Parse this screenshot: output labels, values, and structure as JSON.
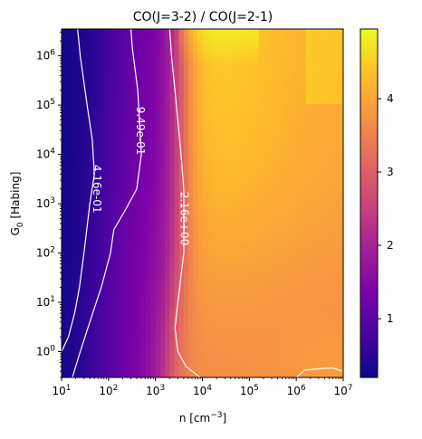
{
  "chart_data": {
    "type": "heatmap",
    "title": "CO(J=3-2) / CO(J=2-1)",
    "xlabel": "n [cm^-3]",
    "xlabel_parts": {
      "base": "n [cm",
      "sup": "−3",
      "end": "]"
    },
    "ylabel": "G_0 [Habing]",
    "ylabel_parts": {
      "base": "G",
      "sub": "0",
      "end": " [Habing]"
    },
    "x_scale": "log",
    "y_scale": "log",
    "xlim": [
      10,
      10000000
    ],
    "ylim": [
      0.3,
      3500000
    ],
    "x_ticks": [
      {
        "exp": 1,
        "base": "10",
        "sup": "1"
      },
      {
        "exp": 2,
        "base": "10",
        "sup": "2"
      },
      {
        "exp": 3,
        "base": "10",
        "sup": "3"
      },
      {
        "exp": 4,
        "base": "10",
        "sup": "4"
      },
      {
        "exp": 5,
        "base": "10",
        "sup": "5"
      },
      {
        "exp": 6,
        "base": "10",
        "sup": "6"
      },
      {
        "exp": 7,
        "base": "10",
        "sup": "7"
      }
    ],
    "y_ticks": [
      {
        "exp": 0,
        "base": "10",
        "sup": "0"
      },
      {
        "exp": 1,
        "base": "10",
        "sup": "1"
      },
      {
        "exp": 2,
        "base": "10",
        "sup": "2"
      },
      {
        "exp": 3,
        "base": "10",
        "sup": "3"
      },
      {
        "exp": 4,
        "base": "10",
        "sup": "4"
      },
      {
        "exp": 5,
        "base": "10",
        "sup": "5"
      },
      {
        "exp": 6,
        "base": "10",
        "sup": "6"
      }
    ],
    "colormap": "plasma",
    "colorbar": {
      "range": [
        0.2,
        4.95
      ],
      "ticks": [
        1,
        2,
        3,
        4
      ],
      "tick_labels": [
        "1",
        "2",
        "3",
        "4"
      ]
    },
    "contours": [
      {
        "level_label": "4.16e-01",
        "color": "#ffffff",
        "segments": [
          [
            [
              10.0,
              1.0
            ],
            [
              14.0,
              2.0
            ],
            [
              19.0,
              6.0
            ],
            [
              24.0,
              20.0
            ],
            [
              30.0,
              100.0
            ],
            [
              40.0,
              1000.0
            ],
            [
              50.0,
              4000.0
            ],
            [
              45.0,
              20000.0
            ],
            [
              35.0,
              100000.0
            ],
            [
              25.0,
              1000000.0
            ],
            [
              22.0,
              3500000.0
            ]
          ],
          [
            [
              17.0,
              0.3
            ],
            [
              25.0,
              1.0
            ],
            [
              40.0,
              4.0
            ],
            [
              70.0,
              20.0
            ],
            [
              110.0,
              100.0
            ],
            [
              130.0,
              300.0
            ]
          ]
        ],
        "label_at": [
          55.0,
          2000.0
        ]
      },
      {
        "level_label": "9.49e-01",
        "color": "#ffffff",
        "segments": [
          [
            [
              130.0,
              300.0
            ],
            [
              220.0,
              700.0
            ],
            [
              400.0,
              2000.0
            ],
            [
              500.0,
              10000.0
            ],
            [
              420.0,
              200000.0
            ],
            [
              320.0,
              1500000.0
            ],
            [
              300.0,
              3500000.0
            ]
          ]
        ],
        "label_at": [
          470.0,
          30000.0
        ]
      },
      {
        "level_label": "2.16e+00",
        "color": "#ffffff",
        "segments": [
          [
            [
              2000.0,
              3500000.0
            ],
            [
              2200.0,
              1000000.0
            ],
            [
              2800.0,
              100000.0
            ],
            [
              3500.0,
              10000.0
            ],
            [
              4000.0,
              2000.0
            ],
            [
              4000.0,
              100.0
            ],
            [
              3000.0,
              10.0
            ],
            [
              2600.0,
              3.0
            ],
            [
              3000.0,
              1.0
            ],
            [
              4500.0,
              0.5
            ],
            [
              9000.0,
              0.3
            ]
          ],
          [
            [
              1000000.0,
              0.3
            ],
            [
              1500000.0,
              0.42
            ],
            [
              3000000.0,
              0.45
            ],
            [
              6000000.0,
              0.47
            ],
            [
              9500000.0,
              0.4
            ]
          ]
        ],
        "label_at": [
          4000.0,
          500.0
        ]
      }
    ]
  }
}
